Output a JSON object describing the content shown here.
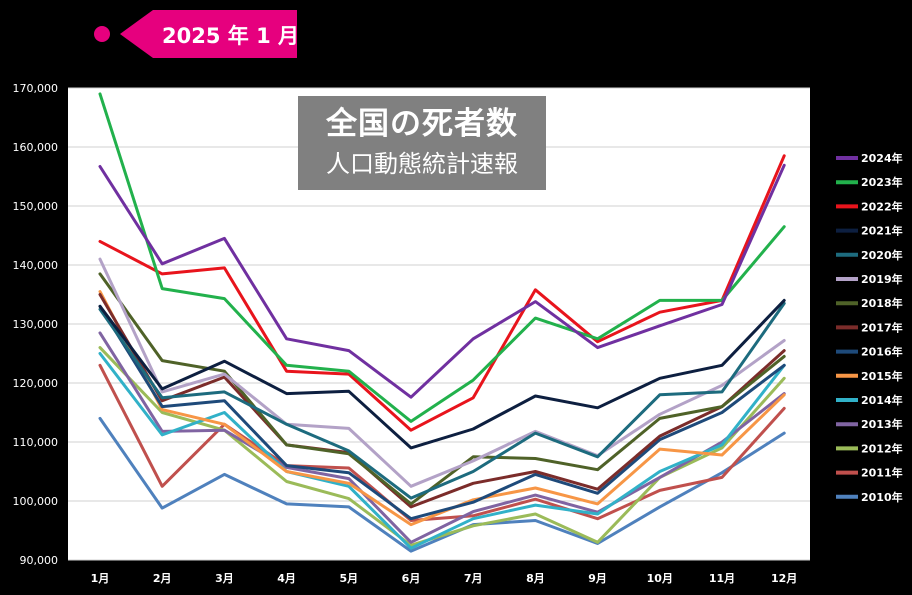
{
  "badge": {
    "label": "2025 年 1 月",
    "color": "#e6007e"
  },
  "chart_data": {
    "type": "line",
    "title": "全国の死者数",
    "subtitle": "人口動態統計速報",
    "xlabel": "",
    "ylabel": "",
    "categories": [
      "1月",
      "2月",
      "3月",
      "4月",
      "5月",
      "6月",
      "7月",
      "8月",
      "9月",
      "10月",
      "11月",
      "12月"
    ],
    "ylim": [
      90000,
      170000
    ],
    "yticks": [
      "90,000",
      "100,000",
      "110,000",
      "120,000",
      "130,000",
      "140,000",
      "150,000",
      "160,000",
      "170,000"
    ],
    "grid": true,
    "legend_position": "right",
    "series": [
      {
        "name": "2024年",
        "color": "#7030a0",
        "values": [
          156700,
          140200,
          144500,
          127500,
          125500,
          117600,
          127500,
          133800,
          126000,
          129700,
          133300,
          156900
        ]
      },
      {
        "name": "2023年",
        "color": "#22b14c",
        "values": [
          169000,
          136000,
          134300,
          123000,
          122000,
          113500,
          120500,
          131000,
          127500,
          134000,
          134000,
          146500
        ]
      },
      {
        "name": "2022年",
        "color": "#e8141c",
        "values": [
          144000,
          138500,
          139500,
          122000,
          121500,
          112000,
          117500,
          135800,
          127000,
          132000,
          134000,
          158500
        ]
      },
      {
        "name": "2021年",
        "color": "#0d1f40",
        "values": [
          133000,
          119000,
          123700,
          118200,
          118600,
          109000,
          112200,
          117800,
          115800,
          120800,
          123000,
          134000
        ]
      },
      {
        "name": "2020年",
        "color": "#1d6b7e",
        "values": [
          132500,
          117500,
          118500,
          113000,
          108500,
          100500,
          105000,
          111500,
          107500,
          118000,
          118500,
          133500
        ]
      },
      {
        "name": "2019年",
        "color": "#b3a2c7",
        "values": [
          141000,
          118500,
          121500,
          113000,
          112300,
          102500,
          106800,
          111800,
          107700,
          114700,
          119600,
          127200
        ]
      },
      {
        "name": "2018年",
        "color": "#4f6228",
        "values": [
          138500,
          123800,
          122000,
          109500,
          108000,
          99500,
          107500,
          107200,
          105300,
          114000,
          116000,
          124500
        ]
      },
      {
        "name": "2017年",
        "color": "#7b2c2a",
        "values": [
          135000,
          117000,
          121000,
          109500,
          108200,
          99000,
          103000,
          105000,
          102000,
          111000,
          116000,
          125500
        ]
      },
      {
        "name": "2016年",
        "color": "#1e4a7a",
        "values": [
          133000,
          116000,
          117000,
          106000,
          104800,
          97000,
          99800,
          104500,
          101300,
          110400,
          115000,
          123000
        ]
      },
      {
        "name": "2015年",
        "color": "#f79646",
        "values": [
          135500,
          115500,
          113000,
          105000,
          103000,
          96000,
          100200,
          102200,
          99500,
          108800,
          107800,
          118000
        ]
      },
      {
        "name": "2014年",
        "color": "#31b1c8",
        "values": [
          125000,
          111200,
          115000,
          105000,
          102500,
          92000,
          97000,
          99300,
          97800,
          105000,
          109500,
          123000
        ]
      },
      {
        "name": "2013年",
        "color": "#8064a2",
        "values": [
          128500,
          111800,
          112000,
          105700,
          103800,
          93000,
          98200,
          101000,
          98100,
          104000,
          110000,
          118200
        ]
      },
      {
        "name": "2012年",
        "color": "#9bbb59",
        "values": [
          126000,
          115000,
          112000,
          103300,
          100400,
          92500,
          95800,
          97800,
          93000,
          104000,
          109000,
          120800
        ]
      },
      {
        "name": "2011年",
        "color": "#c0504d",
        "values": [
          123000,
          102500,
          113000,
          106000,
          105600,
          96700,
          97500,
          100300,
          97000,
          101800,
          104000,
          115700
        ]
      },
      {
        "name": "2010年",
        "color": "#4f81bd",
        "values": [
          114000,
          98800,
          104500,
          99500,
          99000,
          91500,
          96000,
          96700,
          92800,
          99000,
          104800,
          111500
        ]
      }
    ]
  }
}
